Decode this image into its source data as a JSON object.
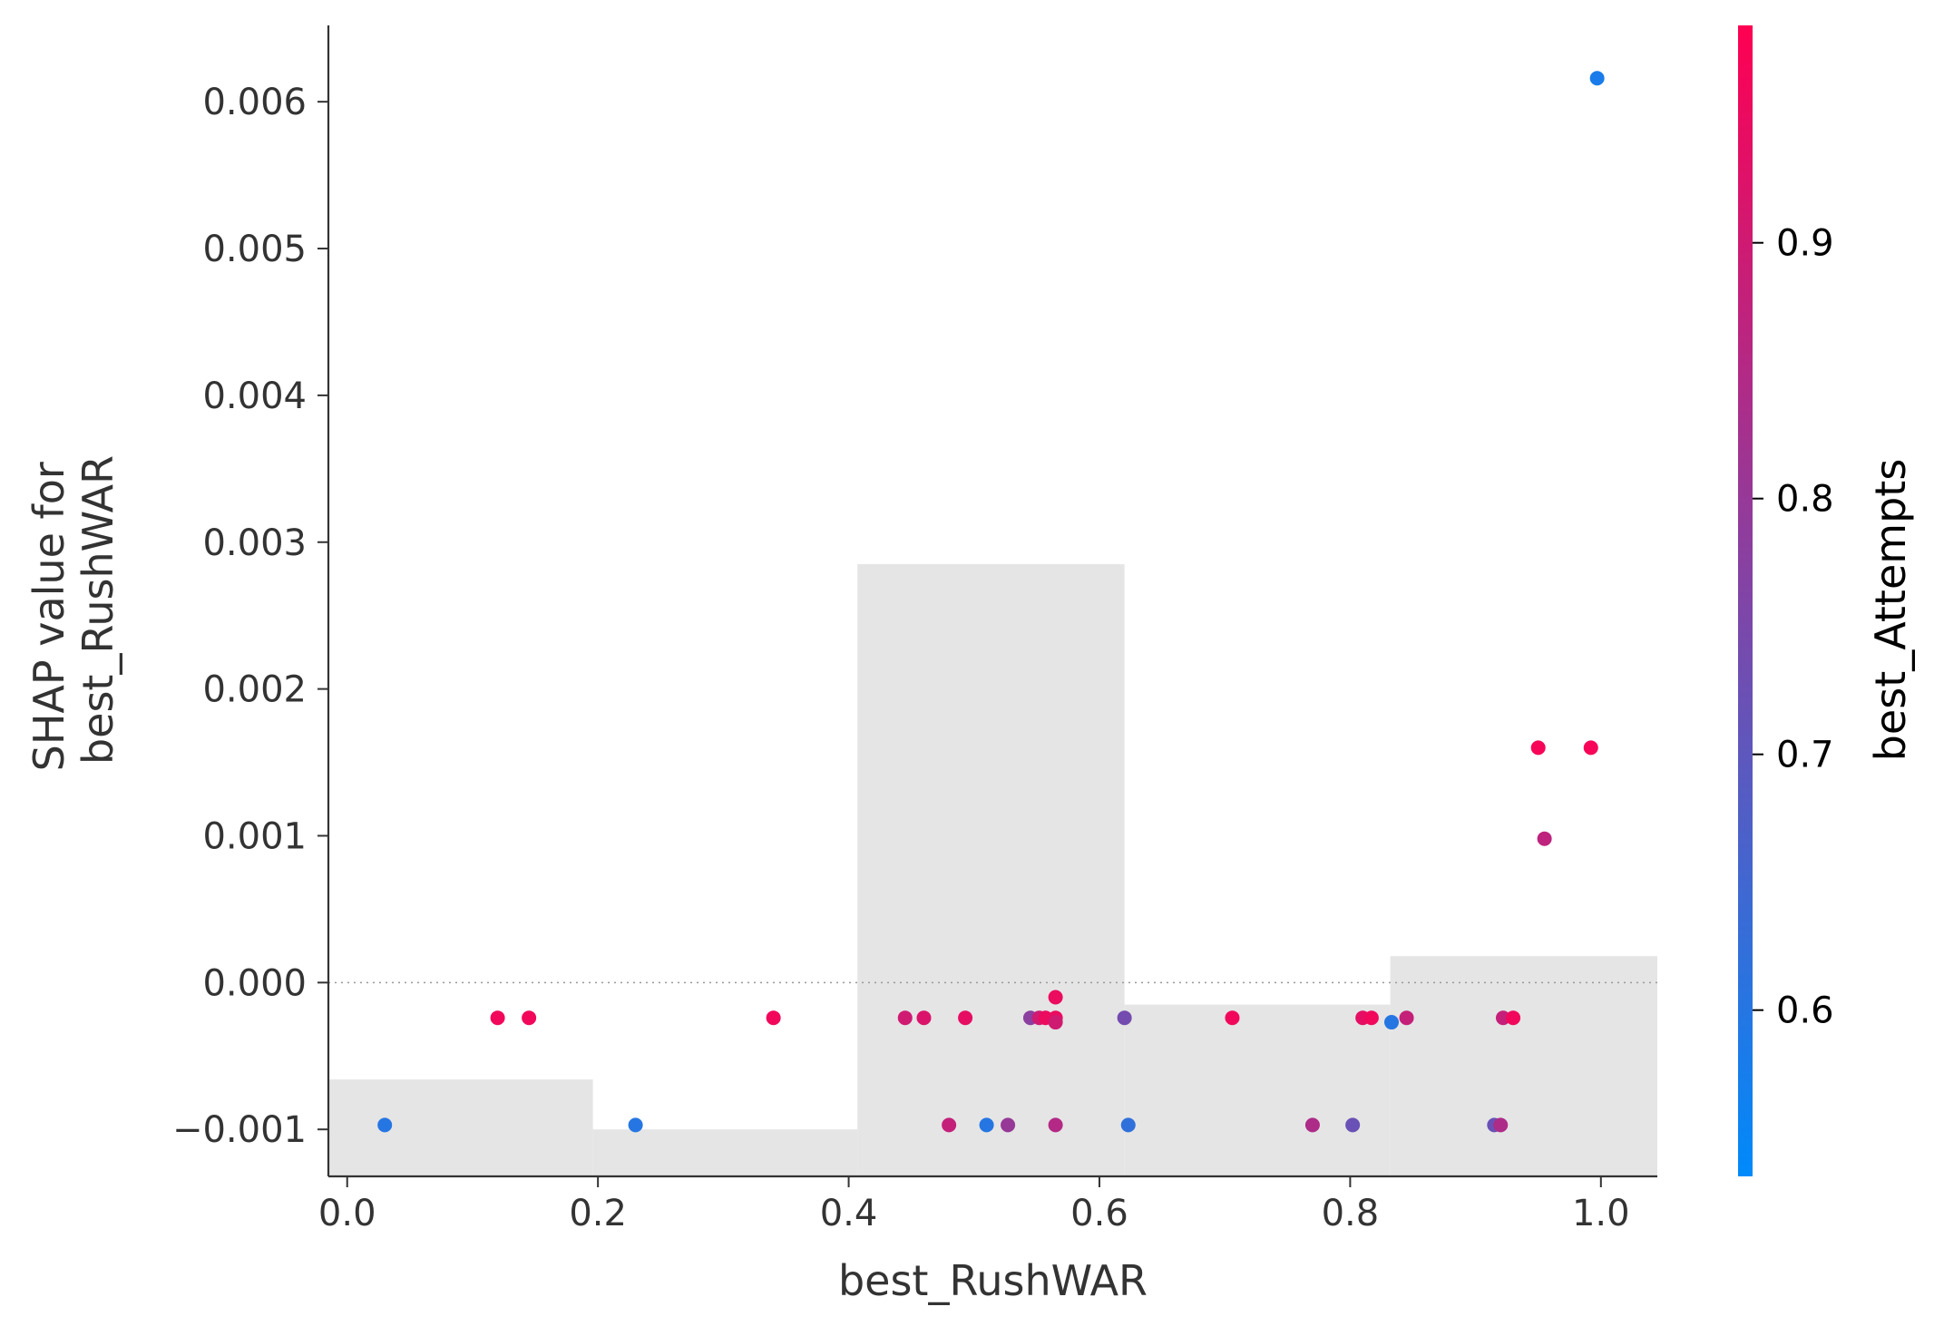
{
  "chart_data": {
    "type": "scatter",
    "title": "",
    "xlabel": "best_RushWAR",
    "ylabel_lines": [
      "SHAP value for",
      "best_RushWAR"
    ],
    "xlim": [
      -0.015,
      1.045
    ],
    "ylim": [
      -0.00132,
      0.00652
    ],
    "x_ticks": [
      0.0,
      0.2,
      0.4,
      0.6,
      0.8,
      1.0
    ],
    "x_tick_labels": [
      "0.0",
      "0.2",
      "0.4",
      "0.6",
      "0.8",
      "1.0"
    ],
    "y_ticks": [
      -0.001,
      0.0,
      0.001,
      0.002,
      0.003,
      0.004,
      0.005,
      0.006
    ],
    "y_tick_labels": [
      "−0.001",
      "0.000",
      "0.001",
      "0.002",
      "0.003",
      "0.004",
      "0.005",
      "0.006"
    ],
    "grid": false,
    "zero_line": true,
    "histogram_bins": [
      {
        "x0": -0.015,
        "x1": 0.196,
        "top": -0.00066
      },
      {
        "x0": 0.196,
        "x1": 0.407,
        "top": -0.001
      },
      {
        "x0": 0.407,
        "x1": 0.62,
        "top": 0.00285
      },
      {
        "x0": 0.62,
        "x1": 0.832,
        "top": -0.00015
      },
      {
        "x0": 0.832,
        "x1": 1.045,
        "top": 0.00018
      }
    ],
    "colorbar": {
      "label": "best_Attempts",
      "range": [
        0.535,
        0.985
      ],
      "ticks": [
        0.6,
        0.7,
        0.8,
        0.9
      ],
      "tick_labels": [
        "0.6",
        "0.7",
        "0.8",
        "0.9"
      ],
      "color_low": "#008afb",
      "color_high": "#ff0052"
    },
    "points": [
      {
        "x": 0.03,
        "y": -0.00097,
        "c": 0.6
      },
      {
        "x": 0.12,
        "y": -0.00024,
        "c": 0.96
      },
      {
        "x": 0.145,
        "y": -0.00024,
        "c": 0.96
      },
      {
        "x": 0.23,
        "y": -0.00097,
        "c": 0.6
      },
      {
        "x": 0.34,
        "y": -0.00024,
        "c": 0.96
      },
      {
        "x": 0.445,
        "y": -0.00024,
        "c": 0.9
      },
      {
        "x": 0.46,
        "y": -0.00024,
        "c": 0.92
      },
      {
        "x": 0.48,
        "y": -0.00097,
        "c": 0.88
      },
      {
        "x": 0.493,
        "y": -0.00024,
        "c": 0.94
      },
      {
        "x": 0.51,
        "y": -0.00097,
        "c": 0.6
      },
      {
        "x": 0.527,
        "y": -0.00097,
        "c": 0.8
      },
      {
        "x": 0.545,
        "y": -0.00024,
        "c": 0.78
      },
      {
        "x": 0.552,
        "y": -0.00024,
        "c": 0.9
      },
      {
        "x": 0.557,
        "y": -0.00024,
        "c": 0.95
      },
      {
        "x": 0.565,
        "y": -0.0001,
        "c": 0.95
      },
      {
        "x": 0.565,
        "y": -0.00024,
        "c": 0.95
      },
      {
        "x": 0.565,
        "y": -0.00027,
        "c": 0.9
      },
      {
        "x": 0.565,
        "y": -0.00097,
        "c": 0.85
      },
      {
        "x": 0.62,
        "y": -0.00024,
        "c": 0.74
      },
      {
        "x": 0.623,
        "y": -0.00097,
        "c": 0.62
      },
      {
        "x": 0.706,
        "y": -0.00024,
        "c": 0.96
      },
      {
        "x": 0.77,
        "y": -0.00097,
        "c": 0.84
      },
      {
        "x": 0.802,
        "y": -0.00097,
        "c": 0.72
      },
      {
        "x": 0.81,
        "y": -0.00024,
        "c": 0.94
      },
      {
        "x": 0.817,
        "y": -0.00024,
        "c": 0.96
      },
      {
        "x": 0.833,
        "y": -0.00027,
        "c": 0.6
      },
      {
        "x": 0.845,
        "y": -0.00024,
        "c": 0.88
      },
      {
        "x": 0.915,
        "y": -0.00097,
        "c": 0.72
      },
      {
        "x": 0.92,
        "y": -0.00097,
        "c": 0.84
      },
      {
        "x": 0.922,
        "y": -0.00024,
        "c": 0.88
      },
      {
        "x": 0.93,
        "y": -0.00024,
        "c": 0.96
      },
      {
        "x": 0.95,
        "y": 0.0016,
        "c": 0.97
      },
      {
        "x": 0.955,
        "y": 0.00098,
        "c": 0.87
      },
      {
        "x": 0.992,
        "y": 0.0016,
        "c": 0.97
      },
      {
        "x": 0.997,
        "y": 0.00616,
        "c": 0.58
      }
    ]
  }
}
